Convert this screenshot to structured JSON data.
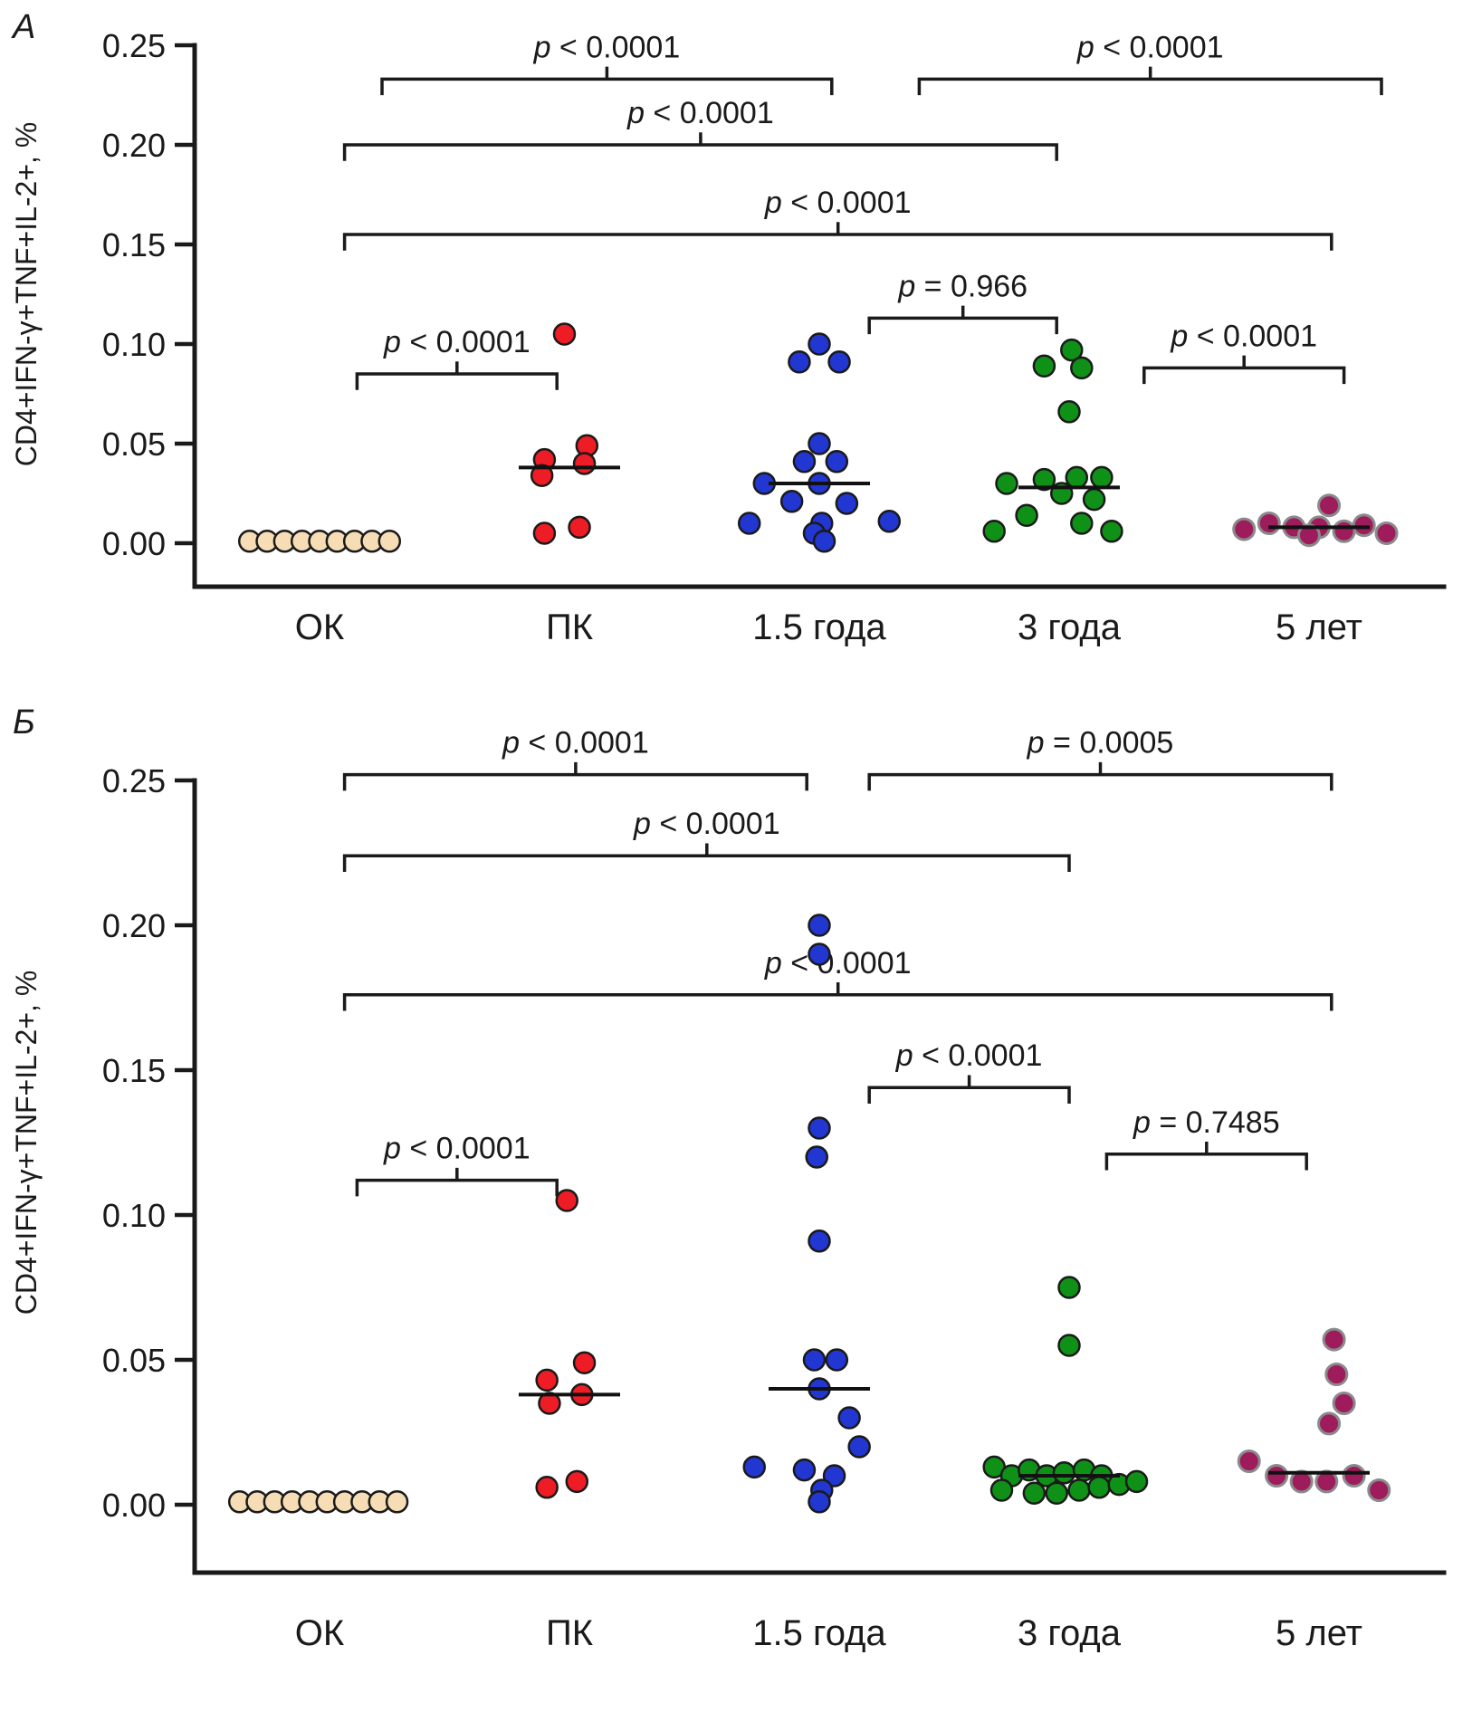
{
  "figure": {
    "background": "#ffffff"
  },
  "chart_data": [
    {
      "type": "scatter",
      "panel_label": "А",
      "ylabel": "CD4+IFN-γ+TNF+IL-2+, %",
      "ylim": [
        0,
        0.25
      ],
      "yticks": [
        "0.00",
        "0.05",
        "0.10",
        "0.15",
        "0.20",
        "0.25"
      ],
      "categories": [
        "ОК",
        "ПК",
        "1.5 года",
        "3 года",
        "5 лет"
      ],
      "series": [
        {
          "name": "ОК",
          "fill": "#f6ddb5",
          "stroke": "#1a1a1a",
          "median": null,
          "points": [
            [
              -0.28,
              0.001
            ],
            [
              -0.21,
              0.001
            ],
            [
              -0.14,
              0.001
            ],
            [
              -0.07,
              0.001
            ],
            [
              0,
              0.001
            ],
            [
              0.07,
              0.001
            ],
            [
              0.14,
              0.001
            ],
            [
              0.21,
              0.001
            ],
            [
              0.28,
              0.001
            ]
          ]
        },
        {
          "name": "ПК",
          "fill": "#ee1c25",
          "stroke": "#1a1a1a",
          "median": 0.038,
          "points": [
            [
              -0.02,
              0.105
            ],
            [
              -0.1,
              0.042
            ],
            [
              -0.11,
              0.034
            ],
            [
              0.07,
              0.049
            ],
            [
              0.06,
              0.04
            ],
            [
              -0.1,
              0.005
            ],
            [
              0.04,
              0.008
            ]
          ]
        },
        {
          "name": "1.5 года",
          "fill": "#2236d1",
          "stroke": "#1a1a1a",
          "median": 0.03,
          "points": [
            [
              0,
              0.1
            ],
            [
              -0.08,
              0.091
            ],
            [
              0.08,
              0.091
            ],
            [
              0,
              0.05
            ],
            [
              -0.06,
              0.041
            ],
            [
              0.07,
              0.041
            ],
            [
              -0.22,
              0.03
            ],
            [
              0,
              0.03
            ],
            [
              -0.11,
              0.021
            ],
            [
              0.11,
              0.02
            ],
            [
              -0.28,
              0.01
            ],
            [
              0.01,
              0.01
            ],
            [
              0.28,
              0.011
            ],
            [
              -0.02,
              0.005
            ],
            [
              0.02,
              0.001
            ]
          ]
        },
        {
          "name": "3 года",
          "fill": "#0f9118",
          "stroke": "#1a1a1a",
          "median": 0.028,
          "points": [
            [
              0.01,
              0.097
            ],
            [
              -0.1,
              0.089
            ],
            [
              0.05,
              0.088
            ],
            [
              0,
              0.066
            ],
            [
              -0.25,
              0.03
            ],
            [
              -0.1,
              0.032
            ],
            [
              0.03,
              0.033
            ],
            [
              0.13,
              0.033
            ],
            [
              -0.03,
              0.025
            ],
            [
              0.1,
              0.022
            ],
            [
              -0.17,
              0.014
            ],
            [
              0.05,
              0.01
            ],
            [
              -0.3,
              0.006
            ],
            [
              0.17,
              0.006
            ]
          ]
        },
        {
          "name": "5 лет",
          "fill": "#9e1b5c",
          "stroke": "#8a8a8a",
          "stroke_width": 3,
          "median": 0.008,
          "points": [
            [
              -0.3,
              0.007
            ],
            [
              -0.2,
              0.01
            ],
            [
              -0.1,
              0.008
            ],
            [
              0,
              0.008
            ],
            [
              0.04,
              0.019
            ],
            [
              0.1,
              0.006
            ],
            [
              0.18,
              0.009
            ],
            [
              0.27,
              0.005
            ],
            [
              -0.04,
              0.004
            ]
          ]
        }
      ],
      "brackets": [
        {
          "label": "p < 0.0001",
          "x1": 0.25,
          "x2": 2.05,
          "y": 0.233
        },
        {
          "label": "p < 0.0001",
          "x1": 2.4,
          "x2": 4.25,
          "y": 0.233
        },
        {
          "label": "p < 0.0001",
          "x1": 0.1,
          "x2": 2.95,
          "y": 0.2
        },
        {
          "label": "p < 0.0001",
          "x1": 0.1,
          "x2": 4.05,
          "y": 0.155
        },
        {
          "label": "p = 0.966",
          "x1": 2.2,
          "x2": 2.95,
          "y": 0.113
        },
        {
          "label": "p < 0.0001",
          "x1": 3.3,
          "x2": 4.1,
          "y": 0.088
        },
        {
          "label": "p < 0.0001",
          "x1": 0.15,
          "x2": 0.95,
          "y": 0.085
        }
      ]
    },
    {
      "type": "scatter",
      "panel_label": "Б",
      "ylabel": "CD4+IFN-γ+TNF+IL-2+, %",
      "ylim": [
        0,
        0.25
      ],
      "yticks": [
        "0.00",
        "0.05",
        "0.10",
        "0.15",
        "0.20",
        "0.25"
      ],
      "categories": [
        "ОК",
        "ПК",
        "1.5 года",
        "3 года",
        "5 лет"
      ],
      "series": [
        {
          "name": "ОК",
          "fill": "#f6ddb5",
          "stroke": "#1a1a1a",
          "median": null,
          "points": [
            [
              -0.32,
              0.001
            ],
            [
              -0.25,
              0.001
            ],
            [
              -0.18,
              0.001
            ],
            [
              -0.11,
              0.001
            ],
            [
              -0.04,
              0.001
            ],
            [
              0.03,
              0.001
            ],
            [
              0.1,
              0.001
            ],
            [
              0.17,
              0.001
            ],
            [
              0.24,
              0.001
            ],
            [
              0.31,
              0.001
            ]
          ]
        },
        {
          "name": "ПК",
          "fill": "#ee1c25",
          "stroke": "#1a1a1a",
          "median": 0.038,
          "points": [
            [
              -0.01,
              0.105
            ],
            [
              -0.09,
              0.043
            ],
            [
              0.06,
              0.049
            ],
            [
              -0.08,
              0.035
            ],
            [
              0.05,
              0.038
            ],
            [
              -0.09,
              0.006
            ],
            [
              0.03,
              0.008
            ]
          ]
        },
        {
          "name": "1.5 года",
          "fill": "#2236d1",
          "stroke": "#1a1a1a",
          "median": 0.04,
          "points": [
            [
              0,
              0.2
            ],
            [
              0,
              0.19
            ],
            [
              0,
              0.13
            ],
            [
              -0.01,
              0.12
            ],
            [
              0,
              0.091
            ],
            [
              -0.02,
              0.05
            ],
            [
              0.07,
              0.05
            ],
            [
              0,
              0.04
            ],
            [
              0.12,
              0.03
            ],
            [
              -0.26,
              0.013
            ],
            [
              0.16,
              0.02
            ],
            [
              -0.06,
              0.012
            ],
            [
              0.06,
              0.01
            ],
            [
              0.01,
              0.005
            ],
            [
              0,
              0.001
            ]
          ]
        },
        {
          "name": "3 года",
          "fill": "#0f9118",
          "stroke": "#1a1a1a",
          "median": 0.01,
          "points": [
            [
              0,
              0.075
            ],
            [
              0,
              0.055
            ],
            [
              -0.3,
              0.013
            ],
            [
              -0.23,
              0.01
            ],
            [
              -0.16,
              0.012
            ],
            [
              -0.09,
              0.01
            ],
            [
              -0.02,
              0.011
            ],
            [
              0.06,
              0.012
            ],
            [
              0.13,
              0.01
            ],
            [
              -0.27,
              0.005
            ],
            [
              -0.14,
              0.004
            ],
            [
              -0.05,
              0.004
            ],
            [
              0.04,
              0.005
            ],
            [
              0.12,
              0.006
            ],
            [
              0.2,
              0.007
            ],
            [
              0.27,
              0.008
            ]
          ]
        },
        {
          "name": "5 лет",
          "fill": "#9e1b5c",
          "stroke": "#8a8a8a",
          "stroke_width": 3,
          "median": 0.011,
          "points": [
            [
              0.06,
              0.057
            ],
            [
              0.07,
              0.045
            ],
            [
              0.1,
              0.035
            ],
            [
              0.04,
              0.028
            ],
            [
              -0.28,
              0.015
            ],
            [
              -0.17,
              0.01
            ],
            [
              -0.07,
              0.008
            ],
            [
              0.03,
              0.008
            ],
            [
              0.14,
              0.01
            ],
            [
              0.24,
              0.005
            ]
          ]
        }
      ],
      "brackets": [
        {
          "label": "p < 0.0001",
          "x1": 0.1,
          "x2": 1.95,
          "y": 0.252
        },
        {
          "label": "p = 0.0005",
          "x1": 2.2,
          "x2": 4.05,
          "y": 0.252
        },
        {
          "label": "p < 0.0001",
          "x1": 0.1,
          "x2": 3.0,
          "y": 0.224
        },
        {
          "label": "p < 0.0001",
          "x1": 0.1,
          "x2": 4.05,
          "y": 0.176
        },
        {
          "label": "p < 0.0001",
          "x1": 2.2,
          "x2": 3.0,
          "y": 0.144
        },
        {
          "label": "p = 0.7485",
          "x1": 3.15,
          "x2": 3.95,
          "y": 0.121
        },
        {
          "label": "p < 0.0001",
          "x1": 0.15,
          "x2": 0.95,
          "y": 0.112
        }
      ]
    }
  ]
}
